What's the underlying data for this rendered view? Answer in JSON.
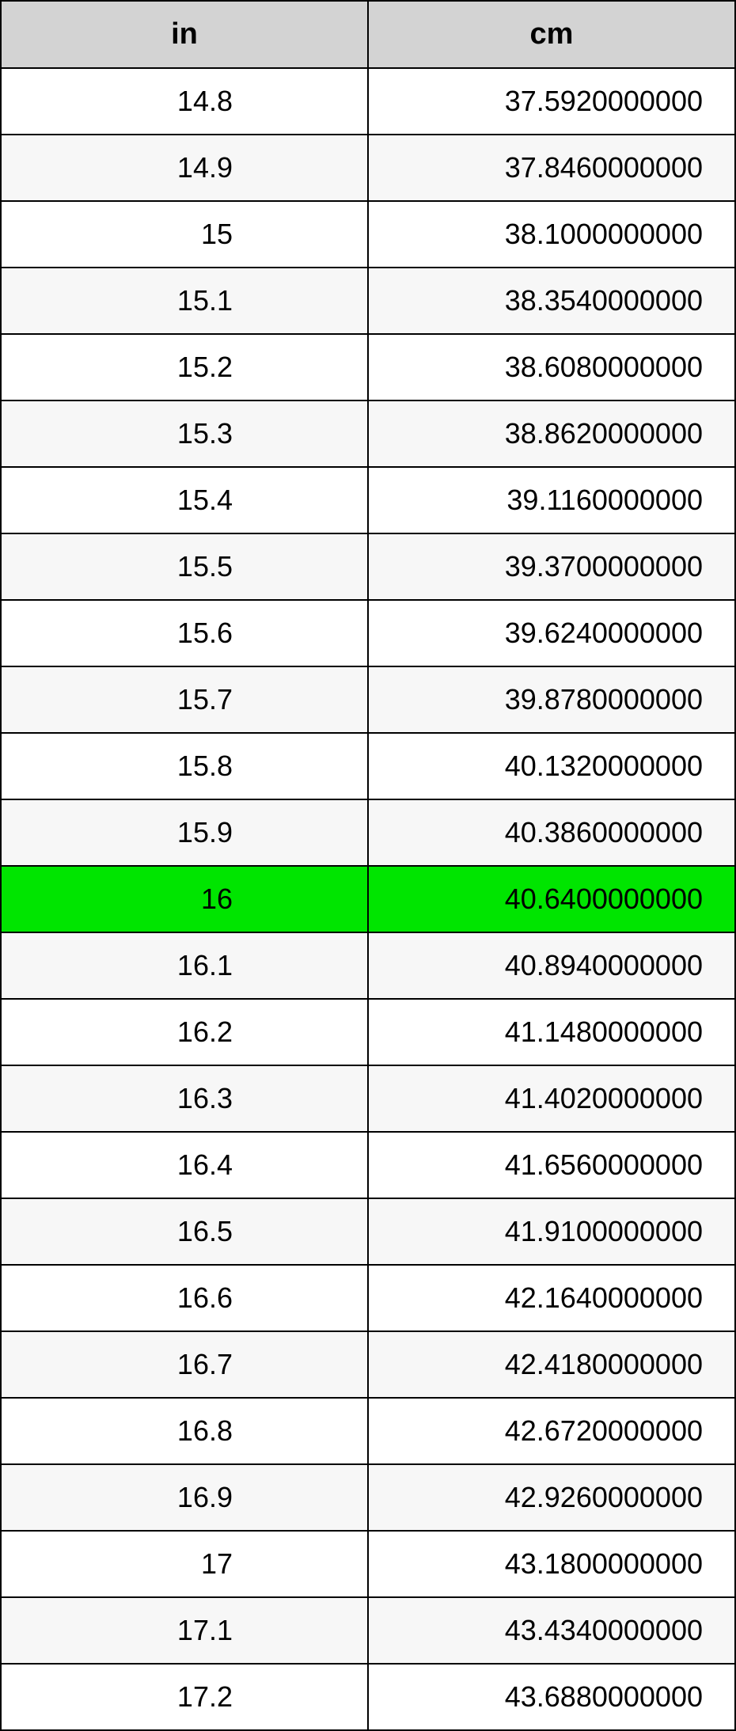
{
  "table": {
    "type": "table",
    "columns": [
      "in",
      "cm"
    ],
    "header_bg": "#d3d3d3",
    "row_bg_odd": "#ffffff",
    "row_bg_even": "#f7f7f7",
    "highlight_bg": "#00e500",
    "border_color": "#000000",
    "text_color": "#000000",
    "header_fontsize": 38,
    "cell_fontsize": 36,
    "highlighted_index": 12,
    "rows": [
      {
        "in": "14.8",
        "cm": "37.5920000000"
      },
      {
        "in": "14.9",
        "cm": "37.8460000000"
      },
      {
        "in": "15",
        "cm": "38.1000000000"
      },
      {
        "in": "15.1",
        "cm": "38.3540000000"
      },
      {
        "in": "15.2",
        "cm": "38.6080000000"
      },
      {
        "in": "15.3",
        "cm": "38.8620000000"
      },
      {
        "in": "15.4",
        "cm": "39.1160000000"
      },
      {
        "in": "15.5",
        "cm": "39.3700000000"
      },
      {
        "in": "15.6",
        "cm": "39.6240000000"
      },
      {
        "in": "15.7",
        "cm": "39.8780000000"
      },
      {
        "in": "15.8",
        "cm": "40.1320000000"
      },
      {
        "in": "15.9",
        "cm": "40.3860000000"
      },
      {
        "in": "16",
        "cm": "40.6400000000"
      },
      {
        "in": "16.1",
        "cm": "40.8940000000"
      },
      {
        "in": "16.2",
        "cm": "41.1480000000"
      },
      {
        "in": "16.3",
        "cm": "41.4020000000"
      },
      {
        "in": "16.4",
        "cm": "41.6560000000"
      },
      {
        "in": "16.5",
        "cm": "41.9100000000"
      },
      {
        "in": "16.6",
        "cm": "42.1640000000"
      },
      {
        "in": "16.7",
        "cm": "42.4180000000"
      },
      {
        "in": "16.8",
        "cm": "42.6720000000"
      },
      {
        "in": "16.9",
        "cm": "42.9260000000"
      },
      {
        "in": "17",
        "cm": "43.1800000000"
      },
      {
        "in": "17.1",
        "cm": "43.4340000000"
      },
      {
        "in": "17.2",
        "cm": "43.6880000000"
      }
    ]
  }
}
